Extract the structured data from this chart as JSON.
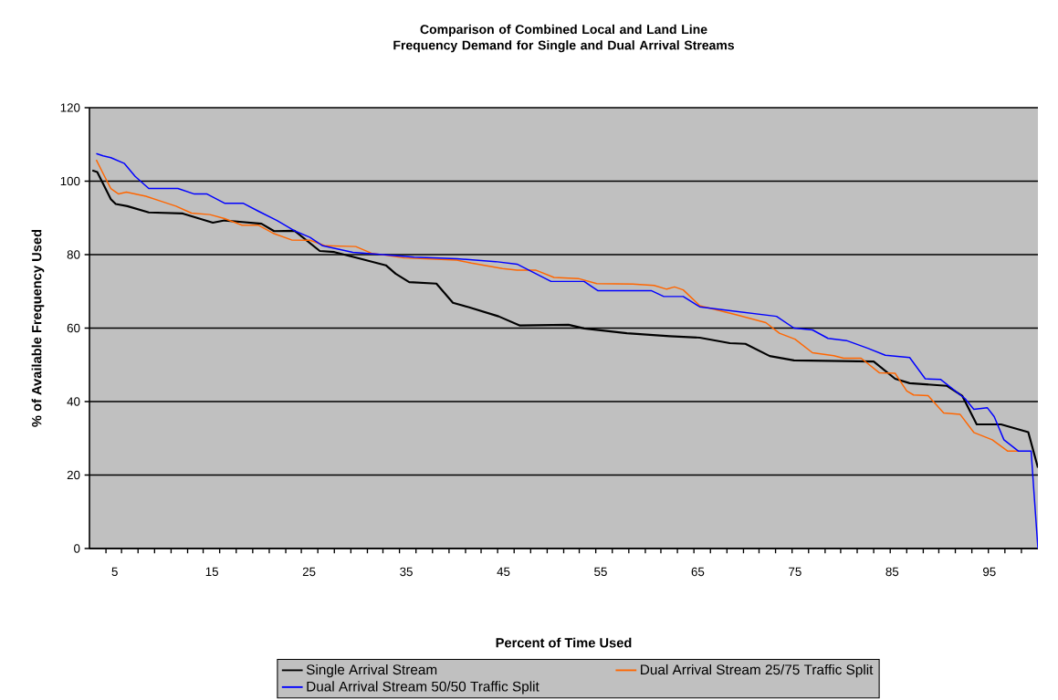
{
  "chart_data": {
    "type": "line",
    "title": "Comparison of Combined Local and Land Line Frequency Demand for Single and Dual Arrival Streams",
    "xlabel": "Percent of Time Used",
    "ylabel": "% of Available Frequency Used",
    "xlim": [
      2.4,
      100
    ],
    "ylim": [
      0,
      120
    ],
    "yticks": [
      0,
      20,
      40,
      60,
      80,
      100,
      120
    ],
    "xticks": [
      5,
      15,
      25,
      35,
      45,
      55,
      65,
      75,
      85,
      95,
      {
        "value": 4.1,
        "label": null
      },
      {
        "value": 5.7,
        "label": null
      },
      {
        "value": 7.4,
        "label": null
      },
      {
        "value": 9.1,
        "label": null
      },
      {
        "value": 10.8,
        "label": null
      },
      {
        "value": 12.5,
        "label": null
      },
      {
        "value": 14.1,
        "label": null
      },
      {
        "value": 15.8,
        "label": null
      },
      {
        "value": 17.5,
        "label": null
      },
      {
        "value": 19.2,
        "label": null
      },
      {
        "value": 20.9,
        "label": null
      },
      {
        "value": 22.6,
        "label": null
      },
      {
        "value": 24.2,
        "label": null
      },
      {
        "value": 25.9,
        "label": null
      },
      {
        "value": 27.6,
        "label": null
      },
      {
        "value": 29.3,
        "label": null
      },
      {
        "value": 31.0,
        "label": null
      },
      {
        "value": 32.6,
        "label": null
      },
      {
        "value": 34.3,
        "label": null
      },
      {
        "value": 36.0,
        "label": null
      },
      {
        "value": 37.7,
        "label": null
      },
      {
        "value": 39.4,
        "label": null
      },
      {
        "value": 41.1,
        "label": null
      },
      {
        "value": 42.7,
        "label": null
      },
      {
        "value": 44.4,
        "label": null
      },
      {
        "value": 46.1,
        "label": null
      },
      {
        "value": 47.8,
        "label": null
      },
      {
        "value": 49.5,
        "label": null
      },
      {
        "value": 51.2,
        "label": null
      },
      {
        "value": 52.8,
        "label": null
      },
      {
        "value": 54.5,
        "label": null
      },
      {
        "value": 56.2,
        "label": null
      },
      {
        "value": 57.9,
        "label": null
      },
      {
        "value": 59.6,
        "label": null
      },
      {
        "value": 61.2,
        "label": null
      },
      {
        "value": 62.9,
        "label": null
      },
      {
        "value": 64.6,
        "label": null
      },
      {
        "value": 66.3,
        "label": null
      },
      {
        "value": 68.0,
        "label": null
      },
      {
        "value": 69.7,
        "label": null
      },
      {
        "value": 71.3,
        "label": null
      },
      {
        "value": 73.0,
        "label": null
      },
      {
        "value": 74.7,
        "label": null
      },
      {
        "value": 76.4,
        "label": null
      },
      {
        "value": 78.1,
        "label": null
      },
      {
        "value": 79.7,
        "label": null
      },
      {
        "value": 81.4,
        "label": null
      },
      {
        "value": 83.1,
        "label": null
      },
      {
        "value": 84.8,
        "label": null
      },
      {
        "value": 86.5,
        "label": null
      },
      {
        "value": 88.2,
        "label": null
      },
      {
        "value": 89.8,
        "label": null
      },
      {
        "value": 91.5,
        "label": null
      },
      {
        "value": 93.2,
        "label": null
      },
      {
        "value": 94.9,
        "label": null
      },
      {
        "value": 96.6,
        "label": null
      },
      {
        "value": 98.3,
        "label": null
      }
    ],
    "grid": "y",
    "legend": "bottom",
    "series": [
      {
        "name": "Single Arrival Stream",
        "color": "#000000",
        "x": [
          2.7,
          3.2,
          4.6,
          5.1,
          6.3,
          8.5,
          12.0,
          15.1,
          16.3,
          20.1,
          21.4,
          23.5,
          26.1,
          27.6,
          30.1,
          32.9,
          33.9,
          35.3,
          38.1,
          39.8,
          41.4,
          44.5,
          46.7,
          51.7,
          53.3,
          57.7,
          62.1,
          65.2,
          68.3,
          69.9,
          72.4,
          74.9,
          83.1,
          85.3,
          86.8,
          90.6,
          92.2,
          93.7,
          96.2,
          99.0,
          100
        ],
        "values": [
          102.9,
          102.5,
          95.1,
          93.8,
          93.2,
          91.5,
          91.2,
          88.7,
          89.3,
          88.4,
          86.4,
          86.5,
          81.0,
          80.7,
          79.0,
          77.1,
          74.8,
          72.5,
          72.1,
          66.9,
          65.7,
          63.2,
          60.7,
          60.9,
          59.9,
          58.6,
          57.8,
          57.4,
          55.9,
          55.7,
          52.4,
          51.2,
          50.9,
          46.2,
          45.0,
          44.3,
          41.6,
          33.8,
          33.8,
          31.7,
          22.0
        ]
      },
      {
        "name": "Dual Arrival Stream 25/75 Traffic Split",
        "color": "#ff6600",
        "x": [
          3.1,
          3.8,
          4.6,
          5.4,
          6.2,
          8.2,
          9.8,
          11.3,
          12.9,
          14.8,
          16.3,
          18.1,
          19.8,
          21.4,
          23.2,
          25.1,
          26.7,
          29.8,
          31.4,
          34.8,
          40.2,
          41.7,
          44.9,
          46.4,
          48.3,
          50.2,
          52.7,
          54.6,
          58.3,
          60.5,
          61.8,
          62.6,
          63.5,
          65.2,
          69.0,
          72.0,
          73.4,
          75.0,
          76.8,
          79.0,
          80.0,
          81.8,
          83.7,
          85.3,
          86.5,
          87.2,
          88.7,
          90.3,
          92.0,
          93.4,
          95.3,
          96.9,
          98.0
        ],
        "values": [
          105.8,
          102.1,
          98.0,
          96.5,
          97.0,
          95.9,
          94.5,
          93.2,
          91.3,
          90.9,
          89.8,
          88.0,
          88.0,
          85.7,
          84.0,
          83.9,
          82.4,
          82.2,
          80.4,
          79.1,
          78.5,
          77.7,
          76.2,
          75.8,
          75.8,
          73.8,
          73.5,
          72.1,
          72.0,
          71.6,
          70.6,
          71.2,
          70.4,
          66.1,
          63.6,
          61.5,
          58.6,
          57.0,
          53.3,
          52.5,
          51.8,
          51.8,
          47.8,
          47.7,
          42.9,
          41.8,
          41.6,
          36.9,
          36.5,
          31.6,
          29.6,
          26.5,
          26.5
        ]
      },
      {
        "name": "Dual Arrival Stream 50/50 Traffic Split",
        "color": "#0000ff",
        "x": [
          3.1,
          3.8,
          4.6,
          6.0,
          7.1,
          8.5,
          11.5,
          13.2,
          14.5,
          16.3,
          18.2,
          19.8,
          21.7,
          23.5,
          25.1,
          26.4,
          29.5,
          32.0,
          35.8,
          40.2,
          44.2,
          46.4,
          49.9,
          53.3,
          54.7,
          60.2,
          61.5,
          63.5,
          65.2,
          68.4,
          73.1,
          74.9,
          76.8,
          78.4,
          80.3,
          82.5,
          84.3,
          86.8,
          88.4,
          90.0,
          92.5,
          93.4,
          94.8,
          95.5,
          96.5,
          98.0,
          99.3,
          99.6,
          100
        ],
        "values": [
          107.5,
          106.9,
          106.4,
          104.8,
          101.3,
          98.0,
          98.0,
          96.5,
          96.5,
          94.0,
          94.0,
          91.8,
          89.3,
          86.5,
          84.7,
          82.4,
          80.6,
          80.1,
          79.3,
          78.9,
          78.1,
          77.4,
          72.7,
          72.7,
          70.2,
          70.2,
          68.6,
          68.6,
          65.8,
          64.7,
          63.2,
          60.0,
          59.5,
          57.2,
          56.6,
          54.5,
          52.6,
          52.0,
          46.2,
          46.0,
          40.8,
          37.9,
          38.3,
          35.9,
          29.6,
          26.5,
          26.5,
          15.0,
          0.0
        ]
      }
    ]
  }
}
